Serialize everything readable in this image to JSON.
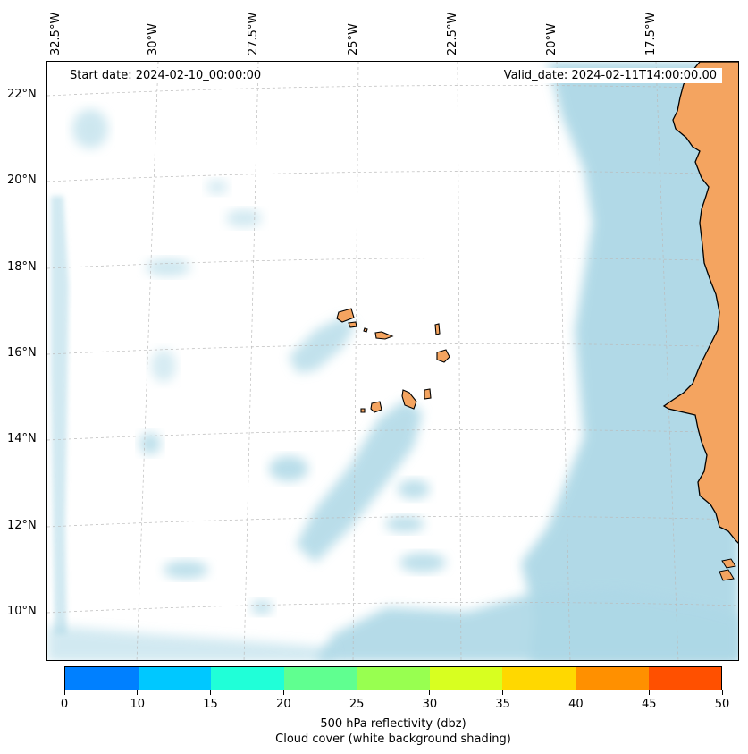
{
  "map": {
    "info": {
      "start_date": "Start date: 2024-02-10_00:00:00",
      "valid_date": "Valid_date: 2024-02-11T14:00:00.00"
    },
    "longitude_labels": [
      "32.5°W",
      "30°W",
      "27.5°W",
      "25°W",
      "22.5°W",
      "20°W",
      "17.5°W"
    ],
    "latitude_labels": [
      "22°N",
      "20°N",
      "18°N",
      "16°N",
      "14°N",
      "12°N",
      "10°N"
    ],
    "colors": {
      "land": "#f4a460",
      "cloud": "#add8e6",
      "coastline": "#000000",
      "gridline": "#bbbbbb"
    }
  },
  "colorbar": {
    "colors": [
      "#0080ff",
      "#00c8ff",
      "#20ffd8",
      "#60ff90",
      "#98ff50",
      "#d8ff20",
      "#ffd800",
      "#ff9000",
      "#ff5000"
    ],
    "ticks": [
      "0",
      "10",
      "15",
      "20",
      "25",
      "30",
      "35",
      "40",
      "45",
      "50"
    ],
    "label_line1": "500 hPa reflectivity (dbz)",
    "label_line2": "Cloud cover (white background shading)"
  }
}
